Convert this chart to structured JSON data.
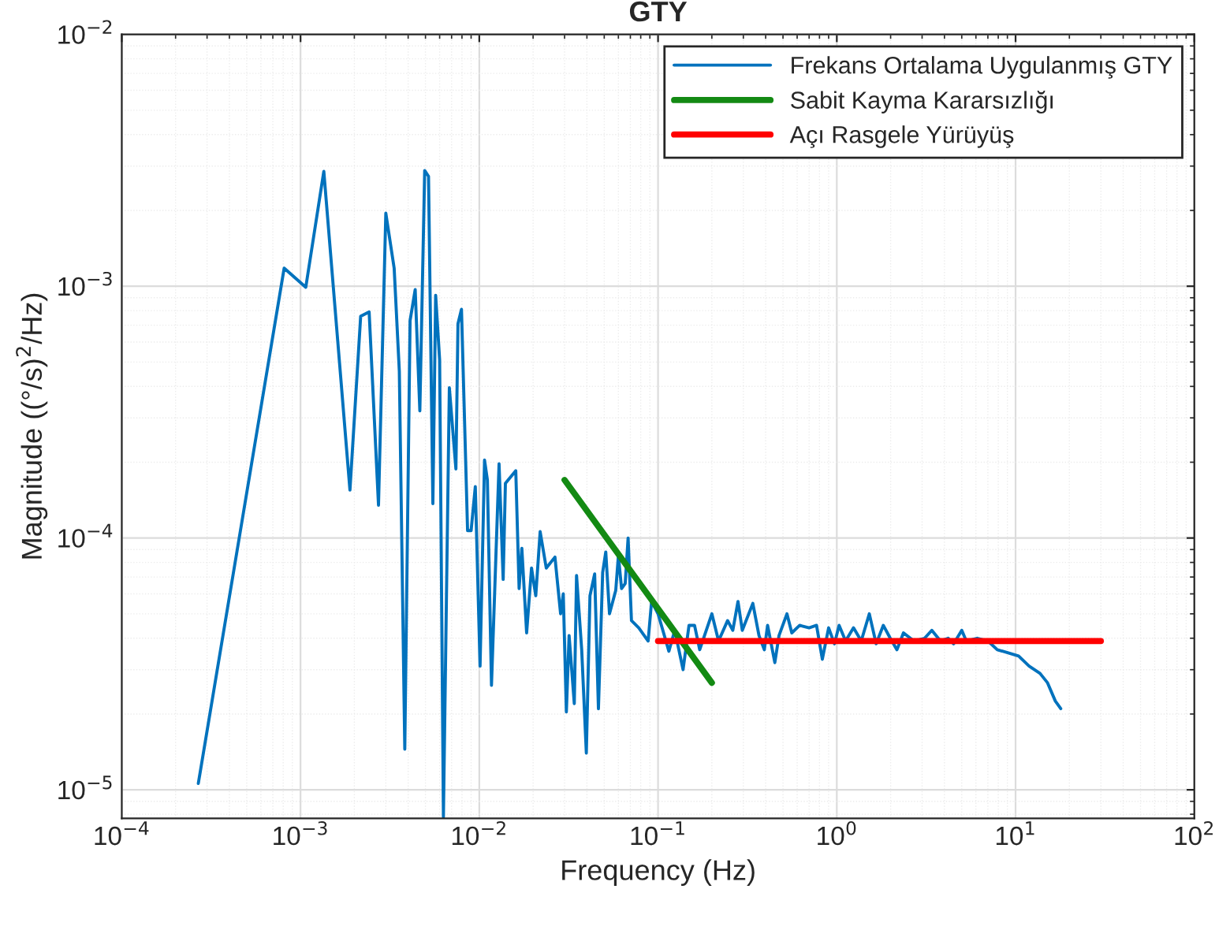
{
  "chart_data": {
    "type": "line",
    "title": "GTY",
    "xlabel": "Frequency (Hz)",
    "ylabel": "Magnitude ((°/s)$^{2}$/Hz)",
    "log": "xy",
    "grid": true,
    "legend": "top right",
    "xlim": [
      0.0001,
      100
    ],
    "ylim": [
      7.7e-06,
      0.01
    ],
    "xticks": [
      {
        "value": 0.0001,
        "label": "10$^{−4}$"
      },
      {
        "value": 0.001,
        "label": "10$^{−3}$"
      },
      {
        "value": 0.01,
        "label": "10$^{−2}$"
      },
      {
        "value": 0.1,
        "label": "10$^{−1}$"
      },
      {
        "value": 1,
        "label": "10$^{0}$"
      },
      {
        "value": 10,
        "label": "10$^{1}$"
      },
      {
        "value": 100,
        "label": "10$^{2}$"
      }
    ],
    "yticks": [
      {
        "value": 1e-05,
        "label": "10$^{−5}$"
      },
      {
        "value": 0.0001,
        "label": "10$^{−4}$"
      },
      {
        "value": 0.001,
        "label": "10$^{−3}$"
      },
      {
        "value": 0.01,
        "label": "10$^{−2}$"
      }
    ],
    "series": [
      {
        "name": "Frekans Ortalama Uygulanmış GTY",
        "color": "#0072bd",
        "x": [
          0.000268,
          0.00081,
          0.00107,
          0.00135,
          0.00189,
          0.00217,
          0.00242,
          0.00273,
          0.003,
          0.00334,
          0.00357,
          0.00383,
          0.0041,
          0.00438,
          0.00465,
          0.00495,
          0.0052,
          0.0055,
          0.0057,
          0.006,
          0.0063,
          0.0068,
          0.0074,
          0.0076,
          0.00795,
          0.0086,
          0.009,
          0.0095,
          0.0101,
          0.0107,
          0.0111,
          0.0117,
          0.0129,
          0.0136,
          0.014,
          0.016,
          0.0167,
          0.0173,
          0.0184,
          0.0196,
          0.0207,
          0.0219,
          0.0237,
          0.0265,
          0.0285,
          0.0295,
          0.0307,
          0.0318,
          0.034,
          0.035,
          0.0374,
          0.0397,
          0.0416,
          0.0442,
          0.0464,
          0.049,
          0.051,
          0.0535,
          0.058,
          0.06,
          0.0625,
          0.0655,
          0.068,
          0.071,
          0.078,
          0.088,
          0.092,
          0.1,
          0.115,
          0.124,
          0.138,
          0.149,
          0.16,
          0.171,
          0.2,
          0.218,
          0.245,
          0.262,
          0.28,
          0.296,
          0.339,
          0.367,
          0.393,
          0.41,
          0.45,
          0.475,
          0.526,
          0.56,
          0.62,
          0.7,
          0.77,
          0.83,
          0.9,
          0.97,
          1.03,
          1.12,
          1.24,
          1.37,
          1.52,
          1.66,
          1.82,
          1.99,
          2.17,
          2.36,
          2.7,
          3.1,
          3.4,
          3.8,
          4.2,
          4.5,
          5.0,
          5.3,
          6.1,
          7.0,
          7.9,
          9.1,
          10.4,
          11.9,
          13.7,
          15.1,
          16.7,
          17.9
        ],
        "values": [
          1.06e-05,
          0.00118,
          0.00099,
          0.00286,
          0.000155,
          0.00076,
          0.00079,
          0.000135,
          0.00195,
          0.00118,
          0.00046,
          1.45e-05,
          0.00073,
          0.00097,
          0.00032,
          0.00288,
          0.00273,
          0.000137,
          0.00092,
          0.00051,
          7.8e-06,
          0.000395,
          0.000188,
          0.00071,
          0.00081,
          0.000107,
          0.000107,
          0.00016,
          3.1e-05,
          0.000204,
          0.00017,
          2.6e-05,
          0.000197,
          6.85e-05,
          0.000165,
          0.000185,
          6.3e-05,
          9.1e-05,
          4.2e-05,
          7.6e-05,
          5.9e-05,
          0.000106,
          7.6e-05,
          8.4e-05,
          5e-05,
          6e-05,
          2.04e-05,
          4.1e-05,
          2.2e-05,
          7.1e-05,
          3.6e-05,
          1.4e-05,
          5.9e-05,
          7.2e-05,
          2.1e-05,
          7.3e-05,
          8.8e-05,
          5e-05,
          6.2e-05,
          8.5e-05,
          6.3e-05,
          6.6e-05,
          0.0001,
          4.7e-05,
          4.4e-05,
          3.9e-05,
          5.6e-05,
          5e-05,
          3.55e-05,
          4.3e-05,
          3e-05,
          4.5e-05,
          4.5e-05,
          3.6e-05,
          5e-05,
          3.9e-05,
          4.7e-05,
          4.3e-05,
          5.6e-05,
          4.3e-05,
          5.5e-05,
          4.1e-05,
          3.6e-05,
          4.5e-05,
          3.2e-05,
          4.1e-05,
          5e-05,
          4.2e-05,
          4.5e-05,
          4.4e-05,
          4.5e-05,
          3.3e-05,
          4.4e-05,
          3.8e-05,
          4.5e-05,
          3.9e-05,
          4.4e-05,
          3.9e-05,
          5e-05,
          3.8e-05,
          4.5e-05,
          4e-05,
          3.6e-05,
          4.2e-05,
          3.9e-05,
          4e-05,
          4.3e-05,
          3.9e-05,
          4e-05,
          3.8e-05,
          4.3e-05,
          3.9e-05,
          4e-05,
          3.9e-05,
          3.6e-05,
          3.5e-05,
          3.4e-05,
          3.1e-05,
          2.9e-05,
          2.66e-05,
          2.25e-05,
          2.1e-05
        ]
      },
      {
        "name": "Sabit Kayma Kararsızlığı",
        "color": "#138a13",
        "x": [
          0.03,
          0.2
        ],
        "values": [
          0.00017,
          2.66e-05
        ]
      },
      {
        "name": "Açı Rasgele Yürüyüş",
        "color": "#ff0000",
        "x": [
          0.1,
          30
        ],
        "values": [
          3.9e-05,
          3.9e-05
        ]
      }
    ]
  }
}
